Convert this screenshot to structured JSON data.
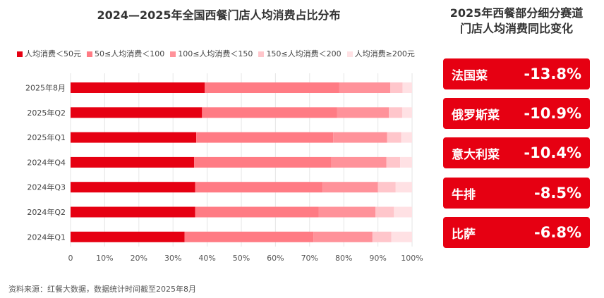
{
  "chart_data": {
    "type": "bar",
    "orientation": "horizontal",
    "stacked": true,
    "title": "2024—2025年全国西餐门店人均消费占比分布",
    "categories": [
      "2025年8月",
      "2025年Q2",
      "2025年Q1",
      "2024年Q4",
      "2024年Q3",
      "2024年Q2",
      "2024年Q1"
    ],
    "series": [
      {
        "name": "人均消费＜50元",
        "color": "#e60012",
        "values": [
          39.3,
          38.5,
          36.8,
          36.2,
          36.5,
          36.5,
          33.4
        ]
      },
      {
        "name": "50≤人均消费＜100",
        "color": "#ff7b84",
        "values": [
          39.4,
          39.5,
          40.1,
          40.2,
          37.3,
          36.2,
          37.7
        ]
      },
      {
        "name": "100≤人均消费＜150",
        "color": "#ff929a",
        "values": [
          14.9,
          15.2,
          15.8,
          16.1,
          16.2,
          16.6,
          17.3
        ]
      },
      {
        "name": "150≤人均消费＜200",
        "color": "#ffc6cb",
        "values": [
          3.6,
          3.9,
          4.1,
          4.0,
          5.2,
          5.4,
          5.5
        ]
      },
      {
        "name": "人均消费≥200元",
        "color": "#ffe1e4",
        "values": [
          2.8,
          2.9,
          3.2,
          3.5,
          4.8,
          5.3,
          6.1
        ]
      }
    ],
    "xticks": [
      "0",
      "10%",
      "20%",
      "30%",
      "40%",
      "50%",
      "60%",
      "70%",
      "80%",
      "90%",
      "100%"
    ],
    "xlim": [
      0,
      100
    ],
    "grid": true,
    "legend": "top"
  },
  "side": {
    "title_line1": "2025年西餐部分细分赛道",
    "title_line2": "门店人均消费同比变化",
    "items": [
      {
        "name": "法国菜",
        "value": "-13.8%"
      },
      {
        "name": "俄罗斯菜",
        "value": "-10.9%"
      },
      {
        "name": "意大利菜",
        "value": "-10.4%"
      },
      {
        "name": "牛排",
        "value": "-8.5%"
      },
      {
        "name": "比萨",
        "value": "-6.8%"
      }
    ]
  },
  "source": "资料来源：红餐大数据，数据统计时间截至2025年8月"
}
